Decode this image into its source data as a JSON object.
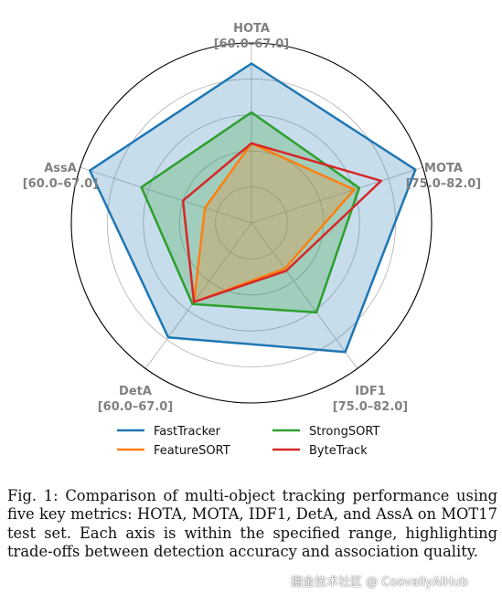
{
  "chart_data": {
    "type": "radar",
    "axes": [
      {
        "name": "HOTA",
        "range_label": "[60.0–67.0]",
        "range": [
          60.0,
          67.0
        ]
      },
      {
        "name": "MOTA",
        "range_label": "[75.0–82.0]",
        "range": [
          75.0,
          82.0
        ]
      },
      {
        "name": "IDF1",
        "range_label": "[75.0–82.0]",
        "range": [
          75.0,
          82.0
        ]
      },
      {
        "name": "DetA",
        "range_label": "[60.0–67.0]",
        "range": [
          60.0,
          67.0
        ]
      },
      {
        "name": "AssA",
        "range_label": "[60.0–67.0]",
        "range": [
          60.0,
          67.0
        ]
      }
    ],
    "series": [
      {
        "name": "FastTracker",
        "color": "#1f77b4",
        "fill": true,
        "values": [
          66.2,
          81.7,
          81.2,
          65.5,
          66.6
        ]
      },
      {
        "name": "StrongSORT",
        "color": "#2ca02c",
        "fill": true,
        "values": [
          64.3,
          79.4,
          79.3,
          63.9,
          64.5
        ]
      },
      {
        "name": "FeatureSORT",
        "color": "#ff7f0e",
        "fill": true,
        "values": [
          63.1,
          79.2,
          77.2,
          63.8,
          61.9
        ]
      },
      {
        "name": "ByteTrack",
        "color": "#d62728",
        "fill": false,
        "values": [
          63.1,
          80.3,
          77.3,
          63.8,
          62.8
        ]
      }
    ],
    "grid": true,
    "legend_position": "bottom"
  },
  "caption": "Fig. 1: Comparison of multi-object tracking performance using five key metrics: HOTA, MOTA, IDF1, DetA, and AssA on MOT17 test set. Each axis is within the specified range, highlighting trade-offs between detection accuracy and association quality.",
  "watermark": "掘金技术社区 @ CoovallyAIHub"
}
